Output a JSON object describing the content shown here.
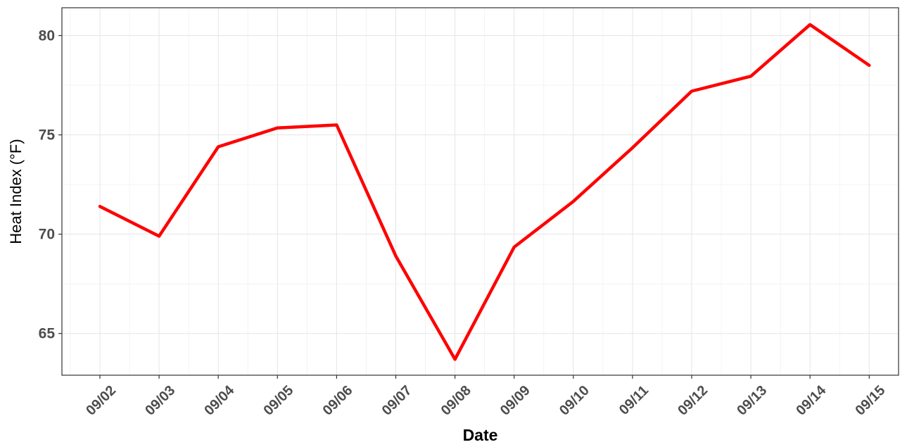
{
  "chart_data": {
    "type": "line",
    "title": "",
    "xlabel": "Date",
    "ylabel": "Heat Index (°F)",
    "x": [
      "09/02",
      "09/03",
      "09/04",
      "09/05",
      "09/06",
      "09/07",
      "09/08",
      "09/09",
      "09/10",
      "09/11",
      "09/12",
      "09/13",
      "09/14",
      "09/15"
    ],
    "series": [
      {
        "values": [
          71.4,
          69.9,
          74.4,
          75.35,
          75.5,
          68.9,
          63.7,
          69.35,
          71.65,
          74.35,
          77.2,
          77.95,
          80.55,
          78.5
        ],
        "color": "#ff0000"
      }
    ],
    "ylim": [
      62.9,
      81.4
    ],
    "yticks": [
      65,
      70,
      75,
      80
    ],
    "y_tick_labels": [
      "65",
      "70",
      "75",
      "80"
    ],
    "grid": true,
    "legend": "none"
  }
}
